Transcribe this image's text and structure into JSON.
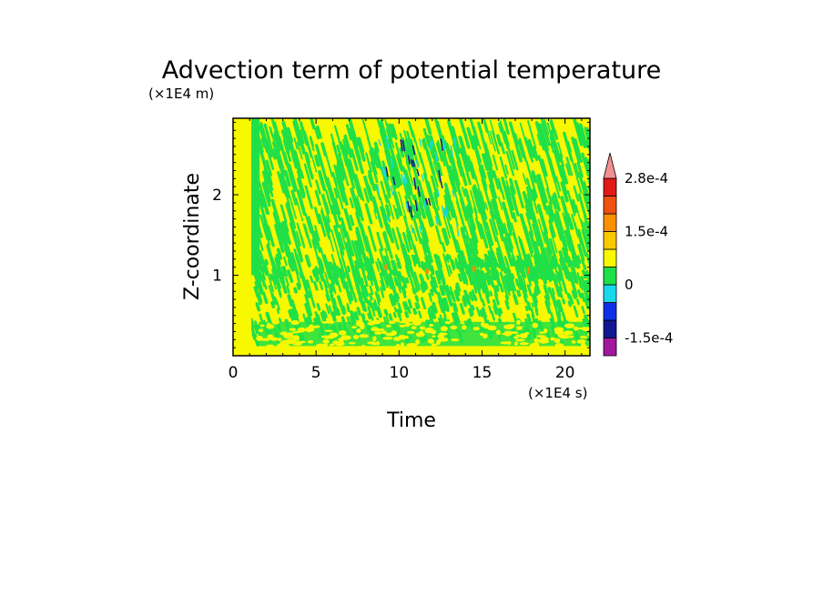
{
  "chart_data": {
    "type": "heatmap",
    "title": "Advection term of potential temperature",
    "xlabel": "Time",
    "ylabel": "Z-coordinate",
    "x_unit": "(×1E4 s)",
    "y_unit": "(×1E4 m)",
    "xlim": [
      0,
      21.5
    ],
    "ylim": [
      0,
      2.95
    ],
    "x_ticks": [
      0,
      5,
      10,
      15,
      20
    ],
    "x_tick_labels": [
      "0",
      "5",
      "10",
      "15",
      "20"
    ],
    "y_ticks": [
      1,
      2
    ],
    "y_tick_labels": [
      "1",
      "2"
    ],
    "colorbar": {
      "levels": [
        -0.0002,
        -0.00015,
        -0.0001,
        -5e-05,
        0,
        5e-05,
        0.0001,
        0.00015,
        0.0002,
        0.00025,
        0.00028
      ],
      "colors": [
        "#a0189c",
        "#101890",
        "#1030e8",
        "#18d8f0",
        "#20e048",
        "#f8f800",
        "#f8c800",
        "#f89000",
        "#f05010",
        "#e01818",
        "#f09090"
      ],
      "tick_labels": [
        "2.8e-4",
        "1.5e-4",
        "0",
        "-1.5e-4"
      ],
      "extend": "max"
    }
  }
}
